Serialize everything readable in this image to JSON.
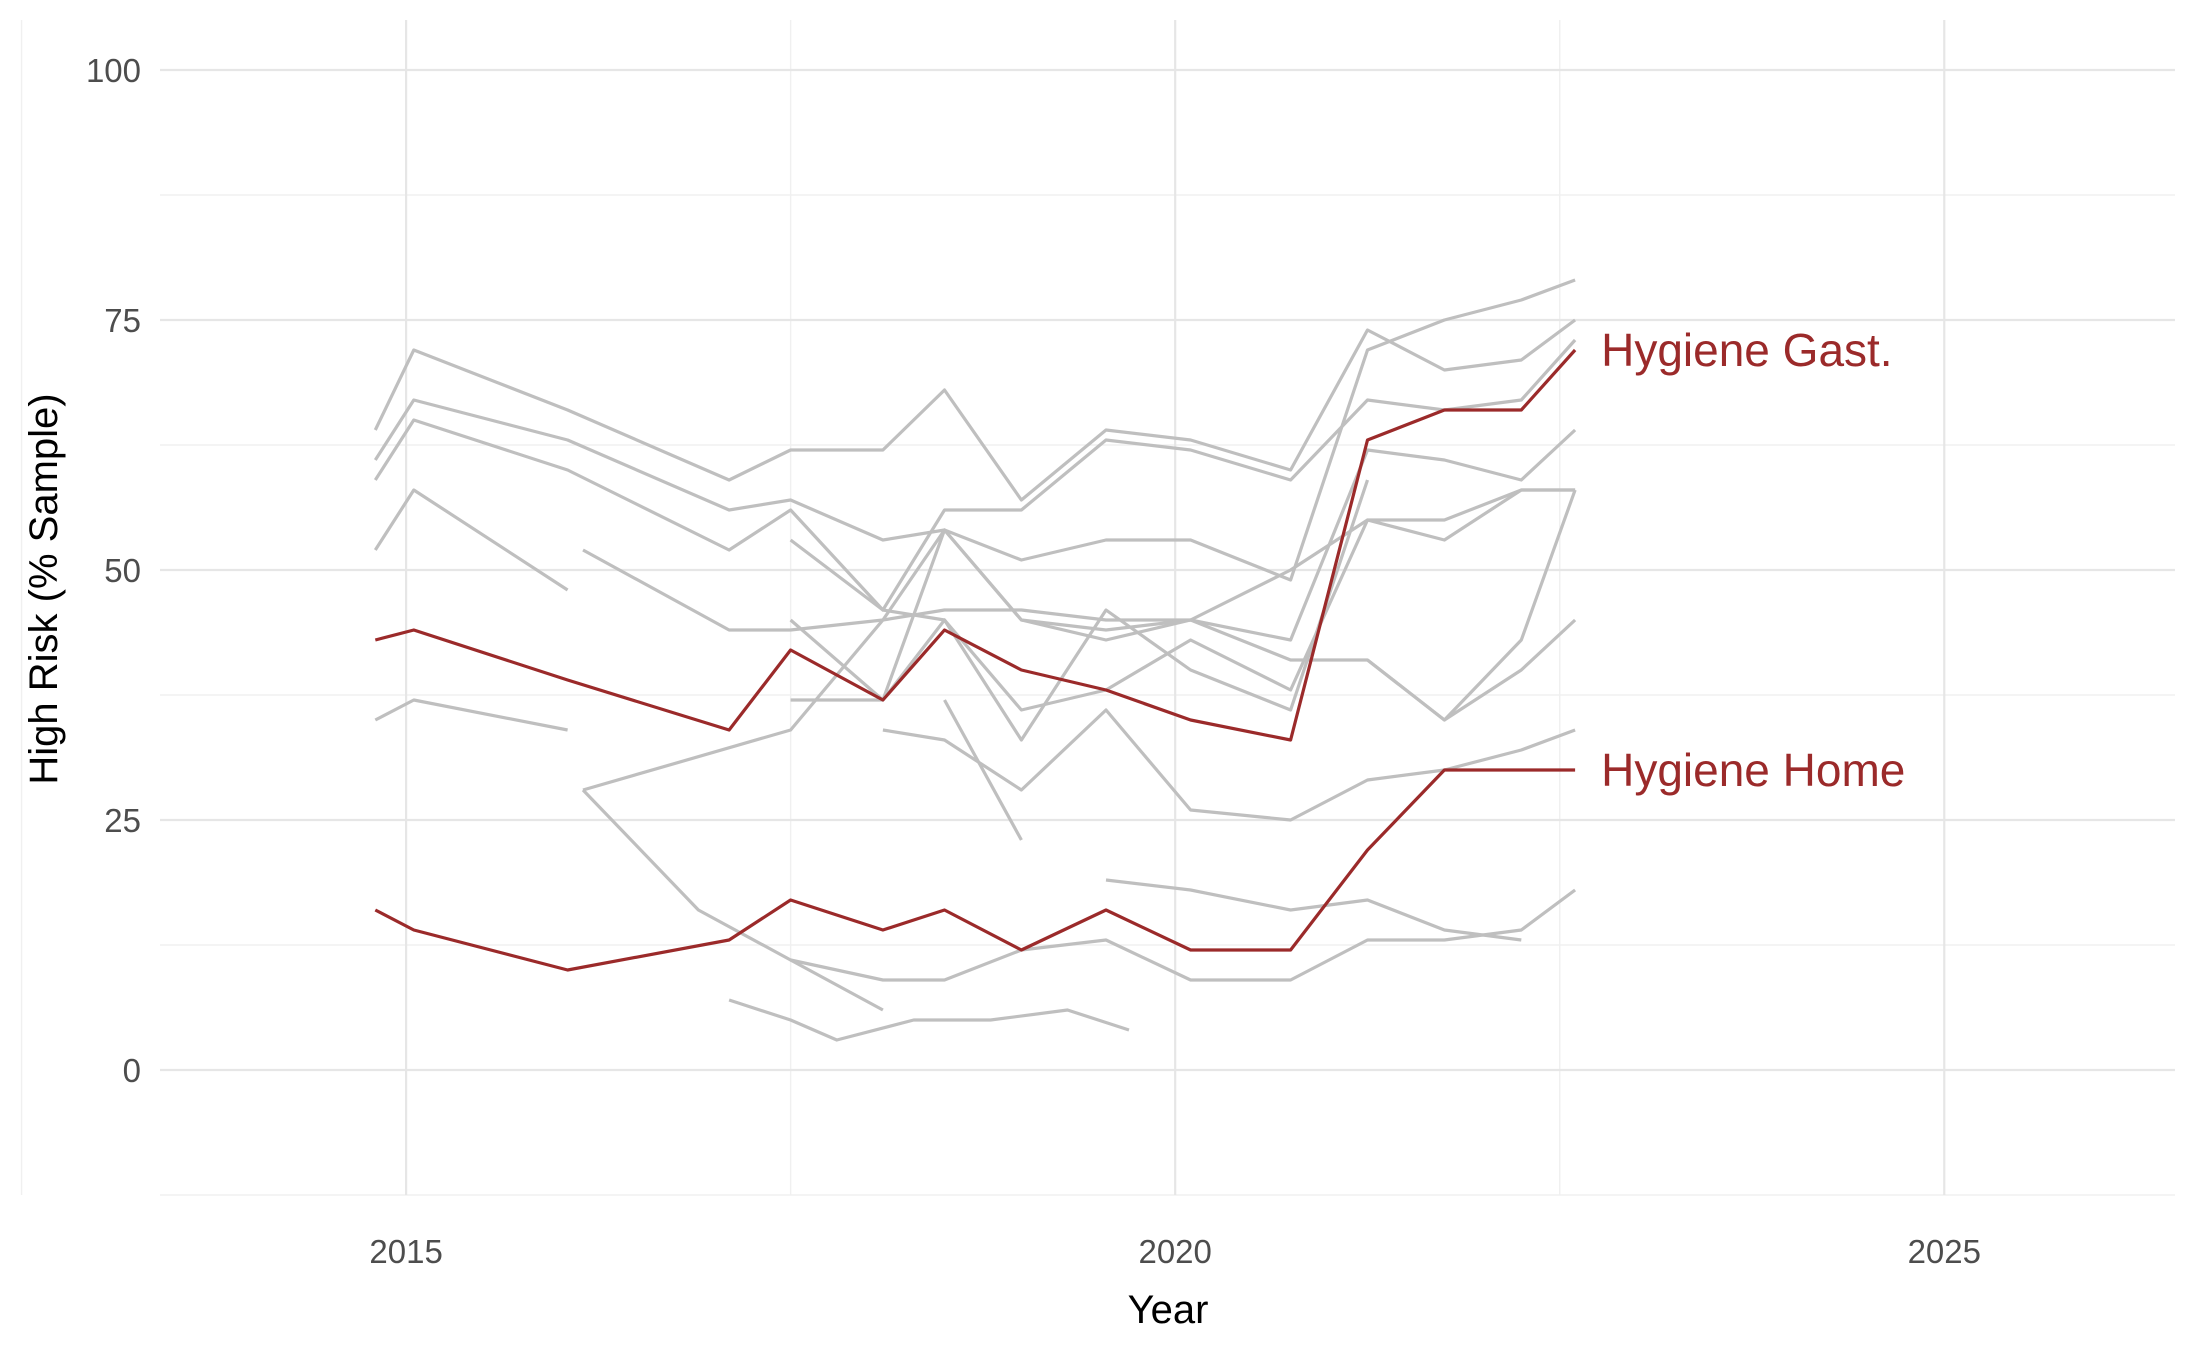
{
  "chart_data": {
    "type": "line",
    "title": "",
    "xlabel": "Year",
    "ylabel": "High Risk (% Sample)",
    "xlim": [
      2013.4,
      2026.5
    ],
    "ylim": [
      -12.5,
      105
    ],
    "x_ticks": [
      "2015",
      "2020",
      "2025"
    ],
    "x_tick_values": [
      2015,
      2020,
      2025
    ],
    "y_ticks": [
      "0",
      "25",
      "50",
      "75",
      "100"
    ],
    "y_tick_values": [
      0,
      25,
      50,
      75,
      100
    ],
    "grid": true,
    "colors": {
      "highlight": "#9b2a2a",
      "background_series": "#bfbfbf",
      "grid": "#e6e6e6"
    },
    "series": [
      {
        "name": "Hygiene Gast.",
        "highlight": true,
        "points": [
          [
            2014.8,
            43
          ],
          [
            2015.05,
            44
          ],
          [
            2016.05,
            39
          ],
          [
            2017.1,
            34
          ],
          [
            2017.5,
            42
          ],
          [
            2018.1,
            37
          ],
          [
            2018.5,
            44
          ],
          [
            2019.0,
            40
          ],
          [
            2019.55,
            38
          ],
          [
            2020.1,
            35
          ],
          [
            2020.75,
            33
          ],
          [
            2021.25,
            63
          ],
          [
            2021.75,
            66
          ],
          [
            2022.25,
            66
          ],
          [
            2022.6,
            72
          ]
        ]
      },
      {
        "name": "Hygiene Home",
        "highlight": true,
        "points": [
          [
            2014.8,
            16
          ],
          [
            2015.05,
            14
          ],
          [
            2016.05,
            10
          ],
          [
            2017.1,
            13
          ],
          [
            2017.5,
            17
          ],
          [
            2018.1,
            14
          ],
          [
            2018.5,
            16
          ],
          [
            2019.0,
            12
          ],
          [
            2019.55,
            16
          ],
          [
            2020.1,
            12
          ],
          [
            2020.75,
            12
          ],
          [
            2021.25,
            22
          ],
          [
            2021.75,
            30
          ],
          [
            2022.25,
            30
          ],
          [
            2022.6,
            30
          ]
        ]
      },
      {
        "highlight": false,
        "points": [
          [
            2014.8,
            64
          ],
          [
            2015.05,
            72
          ],
          [
            2016.05,
            66
          ],
          [
            2017.1,
            59
          ],
          [
            2017.5,
            62
          ],
          [
            2018.1,
            62
          ],
          [
            2018.5,
            68
          ],
          [
            2019.0,
            57
          ],
          [
            2019.55,
            64
          ],
          [
            2020.1,
            63
          ],
          [
            2020.75,
            60
          ],
          [
            2021.25,
            74
          ],
          [
            2021.75,
            70
          ],
          [
            2022.25,
            71
          ],
          [
            2022.6,
            75
          ]
        ]
      },
      {
        "highlight": false,
        "points": [
          [
            2014.8,
            61
          ],
          [
            2015.05,
            67
          ],
          [
            2016.05,
            63
          ],
          [
            2017.1,
            56
          ],
          [
            2017.5,
            57
          ],
          [
            2018.1,
            53
          ],
          [
            2018.5,
            54
          ],
          [
            2019.0,
            51
          ],
          [
            2019.55,
            53
          ],
          [
            2020.1,
            53
          ],
          [
            2020.75,
            49
          ],
          [
            2021.25,
            72
          ],
          [
            2021.75,
            75
          ],
          [
            2022.25,
            77
          ],
          [
            2022.6,
            79
          ]
        ]
      },
      {
        "highlight": false,
        "points": [
          [
            2014.8,
            59
          ],
          [
            2015.05,
            65
          ],
          [
            2016.05,
            60
          ],
          [
            2017.1,
            52
          ],
          [
            2017.5,
            56
          ],
          [
            2018.1,
            46
          ],
          [
            2018.5,
            56
          ],
          [
            2019.0,
            56
          ],
          [
            2019.55,
            63
          ],
          [
            2020.1,
            62
          ],
          [
            2020.75,
            59
          ],
          [
            2021.25,
            67
          ],
          [
            2021.75,
            66
          ],
          [
            2022.25,
            67
          ],
          [
            2022.6,
            73
          ]
        ]
      },
      {
        "highlight": false,
        "points": [
          [
            2014.8,
            52
          ],
          [
            2015.05,
            58
          ],
          [
            2016.05,
            48
          ]
        ]
      },
      {
        "highlight": false,
        "points": [
          [
            2016.15,
            52
          ],
          [
            2017.1,
            44
          ],
          [
            2017.5,
            44
          ],
          [
            2018.1,
            45
          ],
          [
            2018.5,
            46
          ],
          [
            2019.0,
            46
          ],
          [
            2019.55,
            45
          ],
          [
            2020.1,
            45
          ],
          [
            2020.75,
            43
          ],
          [
            2021.25,
            62
          ],
          [
            2021.75,
            61
          ],
          [
            2022.25,
            59
          ],
          [
            2022.6,
            64
          ]
        ]
      },
      {
        "highlight": false,
        "points": [
          [
            2014.8,
            35
          ],
          [
            2015.05,
            37
          ],
          [
            2016.05,
            34
          ]
        ]
      },
      {
        "highlight": false,
        "points": [
          [
            2016.15,
            28
          ],
          [
            2016.9,
            16
          ],
          [
            2017.5,
            11
          ],
          [
            2018.1,
            9
          ],
          [
            2018.5,
            9
          ],
          [
            2019.0,
            12
          ],
          [
            2019.55,
            13
          ],
          [
            2020.1,
            9
          ],
          [
            2020.75,
            9
          ],
          [
            2021.25,
            13
          ],
          [
            2021.75,
            13
          ],
          [
            2022.25,
            14
          ],
          [
            2022.6,
            18
          ]
        ]
      },
      {
        "highlight": false,
        "points": [
          [
            2016.15,
            28
          ],
          [
            2017.5,
            34
          ],
          [
            2018.1,
            45
          ],
          [
            2018.5,
            54
          ],
          [
            2019.0,
            45
          ],
          [
            2019.55,
            43
          ],
          [
            2020.1,
            45
          ],
          [
            2020.75,
            50
          ],
          [
            2021.25,
            55
          ],
          [
            2021.75,
            53
          ],
          [
            2022.25,
            58
          ],
          [
            2022.6,
            58
          ]
        ]
      },
      {
        "highlight": false,
        "points": [
          [
            2017.5,
            53
          ],
          [
            2018.1,
            46
          ],
          [
            2018.5,
            45
          ],
          [
            2019.0,
            36
          ],
          [
            2019.55,
            38
          ],
          [
            2020.1,
            43
          ],
          [
            2020.75,
            38
          ],
          [
            2021.25,
            55
          ],
          [
            2021.75,
            55
          ],
          [
            2022.25,
            58
          ],
          [
            2022.6,
            58
          ]
        ]
      },
      {
        "highlight": false,
        "points": [
          [
            2017.5,
            45
          ],
          [
            2018.1,
            37
          ],
          [
            2018.5,
            45
          ],
          [
            2019.0,
            33
          ],
          [
            2019.55,
            46
          ],
          [
            2020.1,
            40
          ],
          [
            2020.75,
            36
          ],
          [
            2021.25,
            59
          ]
        ]
      },
      {
        "highlight": false,
        "points": [
          [
            2017.5,
            37
          ],
          [
            2018.1,
            37
          ],
          [
            2018.5,
            54
          ],
          [
            2019.0,
            45
          ],
          [
            2019.55,
            44
          ],
          [
            2020.1,
            45
          ],
          [
            2020.75,
            41
          ],
          [
            2021.25,
            41
          ],
          [
            2021.75,
            35
          ],
          [
            2022.25,
            43
          ],
          [
            2022.6,
            58
          ]
        ]
      },
      {
        "highlight": false,
        "points": [
          [
            2017.1,
            7
          ],
          [
            2017.5,
            5
          ],
          [
            2017.8,
            3
          ],
          [
            2018.3,
            5
          ],
          [
            2018.8,
            5
          ],
          [
            2019.3,
            6
          ],
          [
            2019.7,
            4
          ]
        ]
      },
      {
        "highlight": false,
        "points": [
          [
            2017.5,
            11
          ],
          [
            2018.1,
            6
          ]
        ]
      },
      {
        "highlight": false,
        "points": [
          [
            2018.5,
            37
          ],
          [
            2019.0,
            23
          ]
        ]
      },
      {
        "highlight": false,
        "points": [
          [
            2018.1,
            34
          ],
          [
            2018.5,
            33
          ],
          [
            2019.0,
            28
          ],
          [
            2019.55,
            36
          ],
          [
            2020.1,
            26
          ],
          [
            2020.75,
            25
          ],
          [
            2021.25,
            29
          ],
          [
            2021.75,
            30
          ],
          [
            2022.25,
            32
          ],
          [
            2022.6,
            34
          ]
        ]
      },
      {
        "highlight": false,
        "points": [
          [
            2019.55,
            19
          ],
          [
            2020.1,
            18
          ],
          [
            2020.75,
            16
          ],
          [
            2021.25,
            17
          ],
          [
            2021.75,
            14
          ],
          [
            2022.25,
            13
          ]
        ]
      },
      {
        "highlight": false,
        "points": [
          [
            2021.25,
            41
          ],
          [
            2021.75,
            35
          ],
          [
            2022.25,
            40
          ],
          [
            2022.6,
            45
          ]
        ]
      }
    ]
  }
}
